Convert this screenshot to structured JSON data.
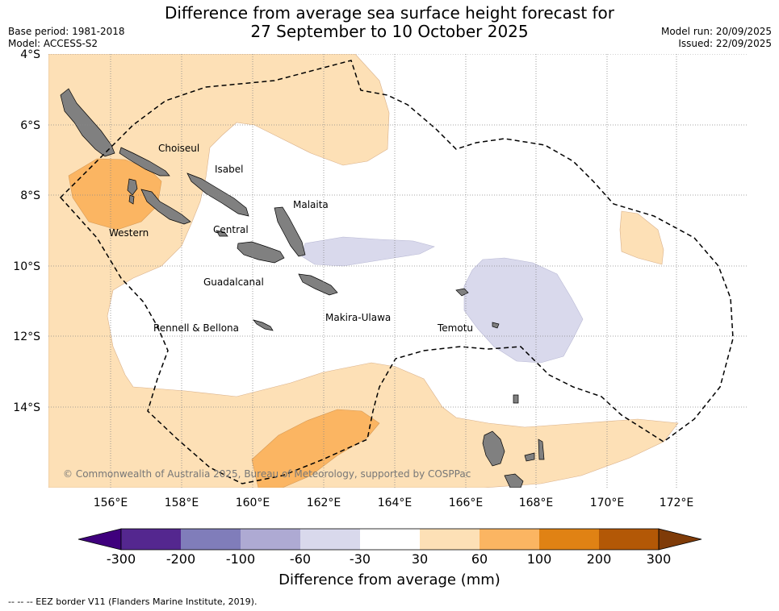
{
  "title_line1": "Difference from average sea surface height forecast for",
  "title_line2": "27 September to 10 October 2025",
  "base_period": "Base period: 1981-2018",
  "model": "Model: ACCESS-S2",
  "model_run": "Model run: 20/09/2025",
  "issued": "Issued: 22/09/2025",
  "lat_labels": [
    "4°S",
    "6°S",
    "8°S",
    "10°S",
    "12°S",
    "14°S"
  ],
  "lon_labels": [
    "156°E",
    "158°E",
    "160°E",
    "162°E",
    "164°E",
    "166°E",
    "168°E",
    "170°E",
    "172°E"
  ],
  "regions": [
    "Choiseul",
    "Isabel",
    "Malaita",
    "Western",
    "Central",
    "Guadalcanal",
    "Makira-Ulawa",
    "Rennell & Bellona",
    "Temotu"
  ],
  "copyright": "© Commonwealth of Australia 2025, Bureau of Meteorology, supported by COSPPac",
  "colorbar": {
    "ticks": [
      "-300",
      "-200",
      "-100",
      "-60",
      "-30",
      "30",
      "60",
      "100",
      "200",
      "300"
    ],
    "colors": [
      "#3f007d",
      "#54278f",
      "#807dba",
      "#aeaad3",
      "#d9d9ec",
      "#ffffff",
      "#fde0b6",
      "#fbb562",
      "#e08214",
      "#b35806",
      "#7f3b08"
    ],
    "title": "Difference from average (mm)"
  },
  "legend_note": "--  --  -- EEZ border V11 (Flanders Marine Institute, 2019).",
  "colors": {
    "land": "#808080",
    "grid": "#888888"
  }
}
